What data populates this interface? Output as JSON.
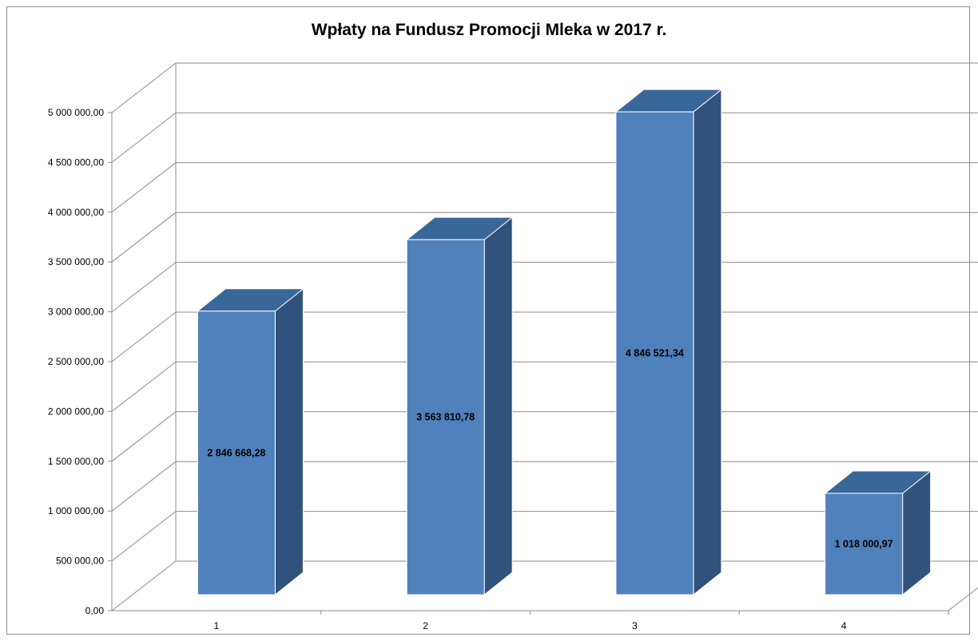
{
  "chart_data": {
    "type": "bar",
    "title": "Wpłaty na  Fundusz Promocji Mleka w 2017 r.",
    "categories": [
      "1",
      "2",
      "3",
      "4"
    ],
    "values": [
      2846668.28,
      3563810.78,
      4846521.34,
      1018000.97
    ],
    "value_labels": [
      "2 846 668,28",
      "3 563 810,78",
      "4 846 521,34",
      "1 018 000,97"
    ],
    "ylim": [
      0,
      5000000
    ],
    "y_ticks": [
      {
        "value": 0,
        "label": "0,00"
      },
      {
        "value": 500000,
        "label": "500 000,00"
      },
      {
        "value": 1000000,
        "label": "1 000 000,00"
      },
      {
        "value": 1500000,
        "label": "1 500 000,00"
      },
      {
        "value": 2000000,
        "label": "2 000 000,00"
      },
      {
        "value": 2500000,
        "label": "2 500 000,00"
      },
      {
        "value": 3000000,
        "label": "3 000 000,00"
      },
      {
        "value": 3500000,
        "label": "3 500 000,00"
      },
      {
        "value": 4000000,
        "label": "4 000 000,00"
      },
      {
        "value": 4500000,
        "label": "4 500 000,00"
      },
      {
        "value": 5000000,
        "label": "5 000 000,00"
      }
    ],
    "grid": true,
    "legend": "none",
    "bar_front_color": "#4f81bd",
    "bar_side_color": "#31527a",
    "bar_top_color": "#3a6799"
  }
}
